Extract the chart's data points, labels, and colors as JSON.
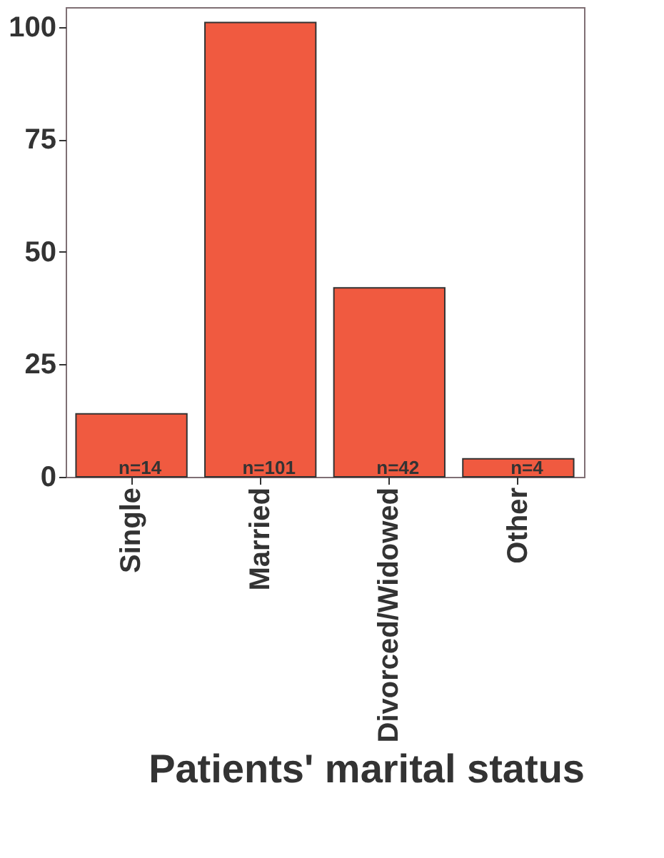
{
  "chart_data": {
    "type": "bar",
    "xlabel": "Patients' marital status",
    "categories": [
      "Single",
      "Married",
      "Divorced/Widowed",
      "Other"
    ],
    "values": [
      14,
      101,
      42,
      4
    ],
    "color": "#f05a40",
    "value_labels": [
      "n=14",
      "n=101",
      "n=42",
      "n=4"
    ],
    "ylim": [
      0,
      104.4
    ],
    "yticks": [
      0,
      25,
      50,
      75,
      100
    ],
    "grid": false
  }
}
